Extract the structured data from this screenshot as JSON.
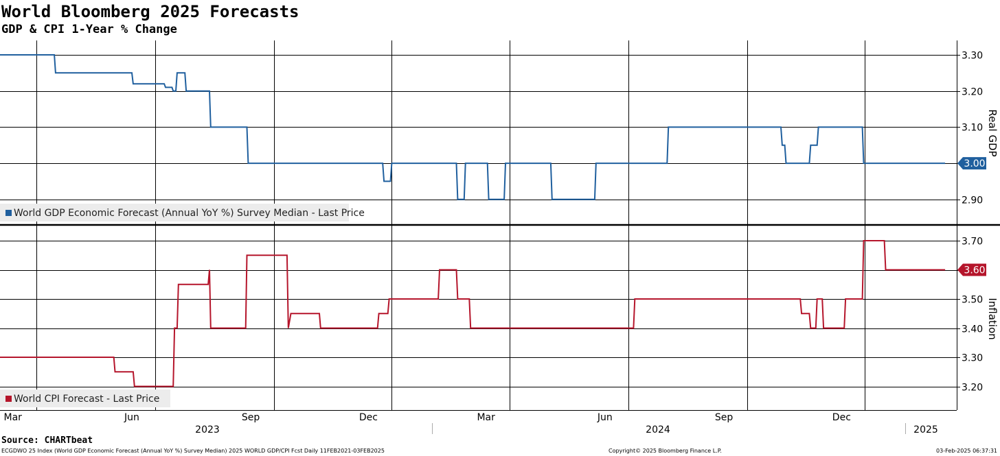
{
  "header": {
    "title": "World Bloomberg 2025 Forecasts",
    "subtitle": "GDP & CPI 1-Year % Change"
  },
  "footer": {
    "source": "Source: CHARTbeat",
    "description": "ECGDWO 25 Index (World GDP Economic Forecast (Annual YoY %) Survey Median) 2025 WORLD GDP/CPI Fcst  Daily 11FEB2021-03FEB2025",
    "copyright": "Copyright© 2025 Bloomberg Finance L.P.",
    "timestamp": "03-Feb-2025 06:37:31"
  },
  "colors": {
    "gdp": "#1f5f9e",
    "cpi": "#b5152b",
    "grid": "#000000",
    "legend_bg": "#ececec"
  },
  "chart_data": [
    {
      "type": "line",
      "panel": "top",
      "ylabel": "Real GDP",
      "ylim": [
        2.84,
        3.34
      ],
      "yticks": [
        "3.30",
        "3.20",
        "3.10",
        "3.00",
        "2.90"
      ],
      "grid": true,
      "legend_position": "bottom-left",
      "last_value_label": "3.00",
      "x_axis": {
        "months": [
          "Mar",
          "Jun",
          "Sep",
          "Dec",
          "Mar",
          "Jun",
          "Sep",
          "Dec"
        ],
        "years": [
          "2023",
          "2024",
          "2025"
        ]
      },
      "series": [
        {
          "name": "World GDP Economic Forecast (Annual YoY %) Survey Median - Last Price",
          "points": [
            [
              "2023-02-01",
              3.3
            ],
            [
              "2023-03-15",
              3.3
            ],
            [
              "2023-03-16",
              3.25
            ],
            [
              "2023-05-14",
              3.25
            ],
            [
              "2023-05-15",
              3.22
            ],
            [
              "2023-06-08",
              3.22
            ],
            [
              "2023-06-09",
              3.21
            ],
            [
              "2023-06-14",
              3.21
            ],
            [
              "2023-06-15",
              3.2
            ],
            [
              "2023-06-17",
              3.2
            ],
            [
              "2023-06-18",
              3.25
            ],
            [
              "2023-06-24",
              3.25
            ],
            [
              "2023-06-25",
              3.2
            ],
            [
              "2023-07-13",
              3.2
            ],
            [
              "2023-07-14",
              3.1
            ],
            [
              "2023-08-11",
              3.1
            ],
            [
              "2023-08-12",
              3.0
            ],
            [
              "2023-11-24",
              3.0
            ],
            [
              "2023-11-25",
              2.95
            ],
            [
              "2023-11-30",
              2.95
            ],
            [
              "2023-12-01",
              3.0
            ],
            [
              "2024-01-20",
              3.0
            ],
            [
              "2024-01-21",
              2.9
            ],
            [
              "2024-01-26",
              2.9
            ],
            [
              "2024-01-27",
              3.0
            ],
            [
              "2024-02-13",
              3.0
            ],
            [
              "2024-02-14",
              2.9
            ],
            [
              "2024-02-26",
              2.9
            ],
            [
              "2024-02-27",
              3.0
            ],
            [
              "2024-04-02",
              3.0
            ],
            [
              "2024-04-03",
              2.9
            ],
            [
              "2024-05-06",
              2.9
            ],
            [
              "2024-05-07",
              3.0
            ],
            [
              "2024-07-01",
              3.0
            ],
            [
              "2024-07-02",
              3.1
            ],
            [
              "2024-09-27",
              3.1
            ],
            [
              "2024-09-28",
              3.05
            ],
            [
              "2024-09-30",
              3.05
            ],
            [
              "2024-10-01",
              3.0
            ],
            [
              "2024-10-19",
              3.0
            ],
            [
              "2024-10-20",
              3.05
            ],
            [
              "2024-10-25",
              3.05
            ],
            [
              "2024-10-26",
              3.1
            ],
            [
              "2024-11-29",
              3.1
            ],
            [
              "2024-11-30",
              3.0
            ],
            [
              "2025-02-01",
              3.0
            ]
          ]
        }
      ]
    },
    {
      "type": "line",
      "panel": "bottom",
      "ylabel": "Inflation",
      "ylim": [
        3.12,
        3.73
      ],
      "yticks": [
        "3.70",
        "3.60",
        "3.50",
        "3.40",
        "3.30",
        "3.20"
      ],
      "grid": true,
      "legend_position": "bottom-left",
      "last_value_label": "3.60",
      "series": [
        {
          "name": "World CPI Forecast - Last Price",
          "points": [
            [
              "2023-02-01",
              3.3
            ],
            [
              "2023-04-30",
              3.3
            ],
            [
              "2023-05-01",
              3.25
            ],
            [
              "2023-05-15",
              3.25
            ],
            [
              "2023-05-16",
              3.2
            ],
            [
              "2023-06-15",
              3.2
            ],
            [
              "2023-06-16",
              3.4
            ],
            [
              "2023-06-18",
              3.4
            ],
            [
              "2023-06-19",
              3.55
            ],
            [
              "2023-07-12",
              3.55
            ],
            [
              "2023-07-13",
              3.6
            ],
            [
              "2023-07-14",
              3.4
            ],
            [
              "2023-08-10",
              3.4
            ],
            [
              "2023-08-11",
              3.65
            ],
            [
              "2023-09-11",
              3.65
            ],
            [
              "2023-09-12",
              3.4
            ],
            [
              "2023-09-14",
              3.45
            ],
            [
              "2023-10-06",
              3.45
            ],
            [
              "2023-10-07",
              3.4
            ],
            [
              "2023-11-20",
              3.4
            ],
            [
              "2023-11-21",
              3.45
            ],
            [
              "2023-11-28",
              3.45
            ],
            [
              "2023-11-29",
              3.5
            ],
            [
              "2024-01-06",
              3.5
            ],
            [
              "2024-01-07",
              3.6
            ],
            [
              "2024-01-20",
              3.6
            ],
            [
              "2024-01-21",
              3.5
            ],
            [
              "2024-01-30",
              3.5
            ],
            [
              "2024-01-31",
              3.4
            ],
            [
              "2024-06-05",
              3.4
            ],
            [
              "2024-06-06",
              3.5
            ],
            [
              "2024-10-12",
              3.5
            ],
            [
              "2024-10-13",
              3.45
            ],
            [
              "2024-10-19",
              3.45
            ],
            [
              "2024-10-20",
              3.4
            ],
            [
              "2024-10-24",
              3.4
            ],
            [
              "2024-10-25",
              3.5
            ],
            [
              "2024-10-29",
              3.5
            ],
            [
              "2024-10-30",
              3.4
            ],
            [
              "2024-11-15",
              3.4
            ],
            [
              "2024-11-16",
              3.5
            ],
            [
              "2024-11-29",
              3.5
            ],
            [
              "2024-11-30",
              3.7
            ],
            [
              "2024-12-16",
              3.7
            ],
            [
              "2024-12-17",
              3.6
            ],
            [
              "2025-02-01",
              3.6
            ]
          ]
        }
      ]
    }
  ]
}
